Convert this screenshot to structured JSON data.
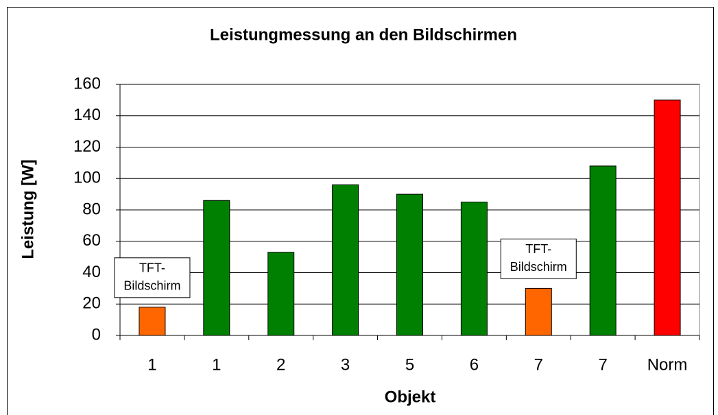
{
  "chart_data": {
    "type": "bar",
    "title": "Leistungmessung an den Bildschirmen",
    "x_label": "Objekt",
    "y_label": "Leistung [W]",
    "categories": [
      "1",
      "1",
      "2",
      "3",
      "5",
      "6",
      "7",
      "7",
      "Norm"
    ],
    "values": [
      18,
      86,
      53,
      96,
      90,
      85,
      30,
      108,
      150
    ],
    "colors": [
      "#ff6600",
      "#008000",
      "#008000",
      "#008000",
      "#008000",
      "#008000",
      "#ff6600",
      "#008000",
      "#ff0000"
    ],
    "annotations": [
      [
        "TFT-",
        "Bildschirm"
      ],
      [
        "TFT-",
        "Bildschirm"
      ]
    ],
    "ylim": [
      0,
      160
    ],
    "yticks": [
      0,
      20,
      40,
      60,
      80,
      100,
      120,
      140,
      160
    ],
    "grid": true
  }
}
